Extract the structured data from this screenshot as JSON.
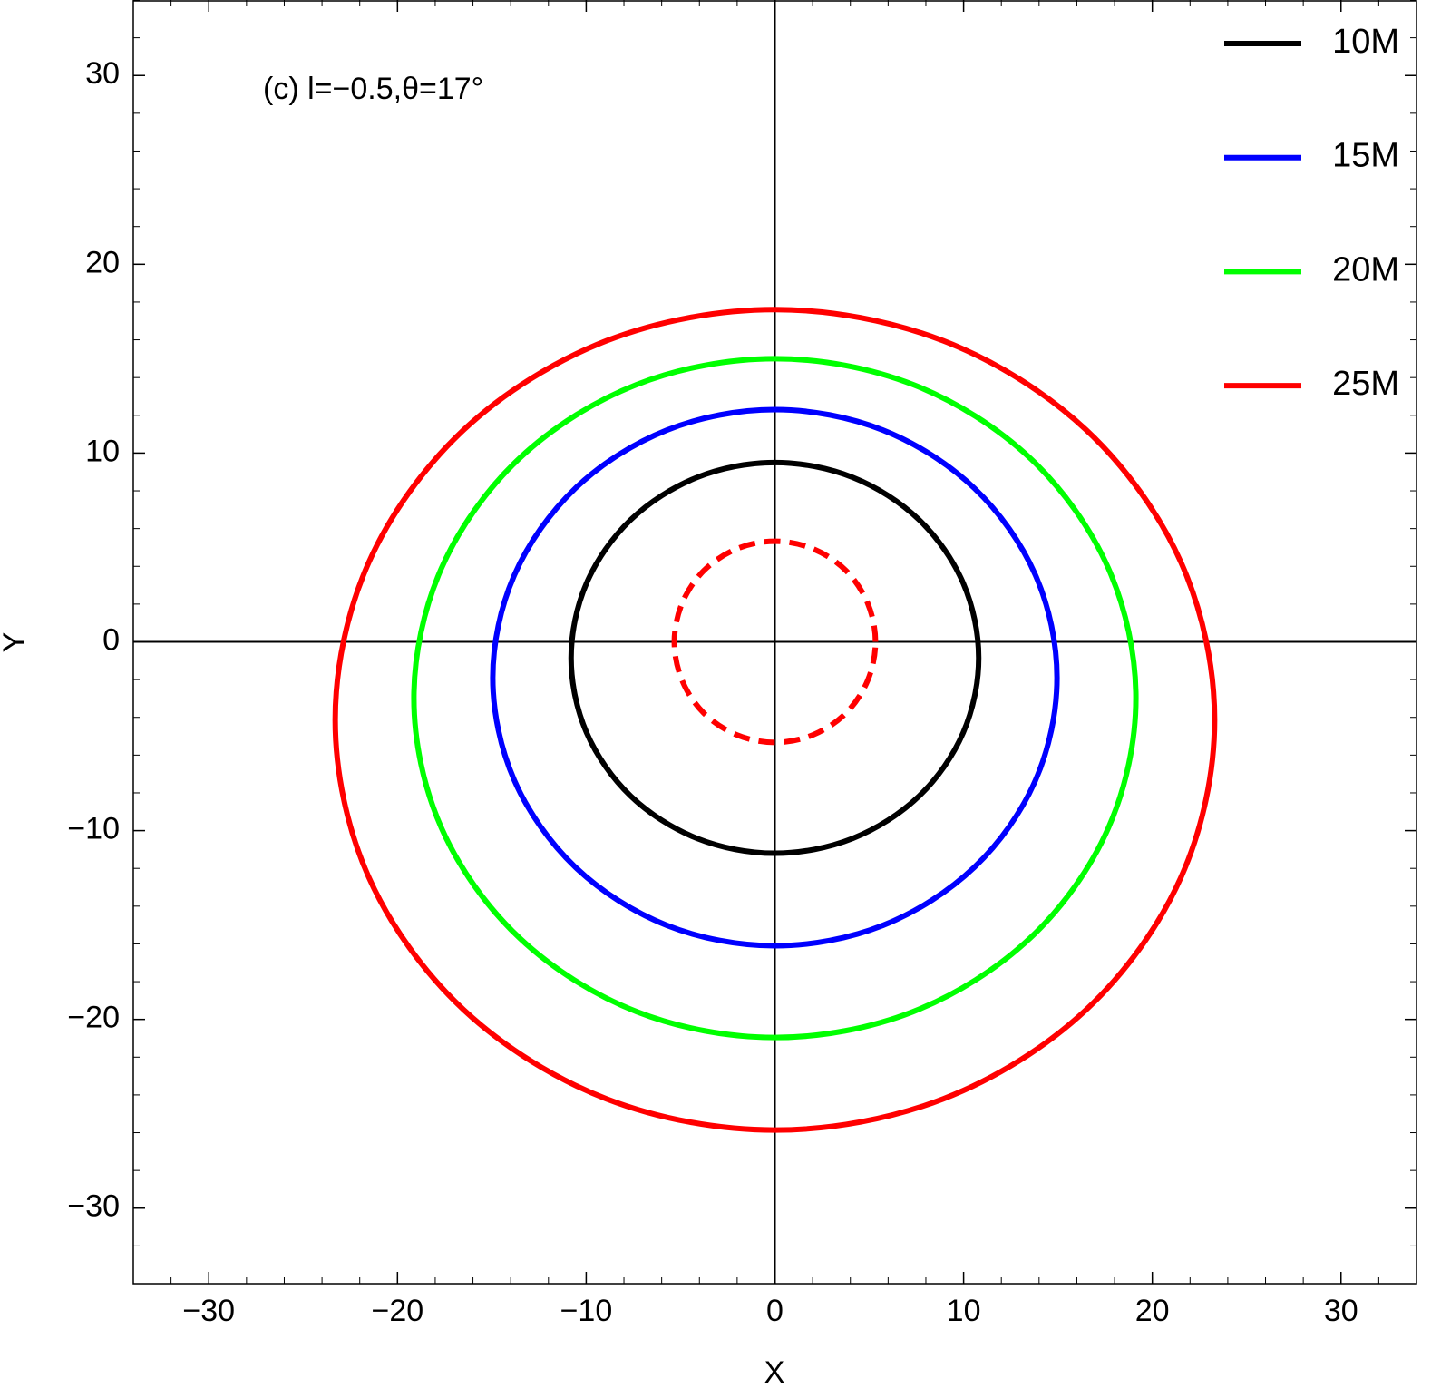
{
  "chart_data": {
    "type": "line",
    "annotation": "(c) l=−0.5,θ=17°",
    "x_label": "X",
    "y_label": "Y",
    "xlim": [
      -34,
      34
    ],
    "ylim": [
      -34,
      34
    ],
    "xticks": [
      {
        "value": -30,
        "label": "−30"
      },
      {
        "value": -20,
        "label": "−20"
      },
      {
        "value": -10,
        "label": "−10"
      },
      0,
      10,
      20,
      30
    ],
    "yticks": [
      {
        "value": -30,
        "label": "−30"
      },
      {
        "value": -20,
        "label": "−20"
      },
      {
        "value": -10,
        "label": "−10"
      },
      0,
      10,
      20,
      30
    ],
    "legend": "top-right",
    "series": [
      {
        "name": "10M",
        "color": "#000000",
        "x": [
          10.8,
          9.98,
          7.64,
          4.13,
          0,
          -4.13,
          -7.64,
          -9.98,
          -10.8,
          -9.98,
          -7.64,
          -4.13,
          0,
          4.13,
          7.64,
          9.98
        ],
        "y": [
          -0.85,
          3.11,
          6.47,
          8.71,
          9.5,
          8.71,
          6.47,
          3.11,
          -0.85,
          -4.81,
          -8.17,
          -10.41,
          -11.2,
          -10.41,
          -8.17,
          -4.81
        ]
      },
      {
        "name": "15M",
        "color": "#0000ff",
        "x": [
          14.95,
          13.81,
          10.57,
          5.72,
          0,
          -5.72,
          -10.57,
          -13.81,
          -14.95,
          -13.81,
          -10.57,
          -5.72,
          0,
          5.72,
          10.57,
          13.81
        ],
        "y": [
          -1.9,
          3.53,
          8.14,
          11.22,
          12.3,
          11.22,
          8.14,
          3.53,
          -1.9,
          -7.33,
          -11.94,
          -15.02,
          -16.1,
          -15.02,
          -11.94,
          -7.33
        ]
      },
      {
        "name": "20M",
        "color": "#00ff00",
        "x": [
          19.13,
          17.67,
          13.53,
          7.32,
          0,
          -7.32,
          -13.53,
          -17.67,
          -19.13,
          -17.67,
          -13.53,
          -7.32,
          0,
          7.32,
          13.53,
          17.67
        ],
        "y": [
          -2.98,
          3.9,
          9.73,
          13.63,
          15.0,
          13.63,
          9.73,
          3.9,
          -2.98,
          -9.86,
          -15.69,
          -19.59,
          -20.96,
          -19.59,
          -15.69,
          -9.86
        ]
      },
      {
        "name": "25M",
        "color": "#ff0000",
        "x": [
          23.3,
          21.53,
          16.48,
          8.92,
          0,
          -8.92,
          -16.48,
          -21.53,
          -23.3,
          -21.53,
          -16.48,
          -8.92,
          0,
          8.92,
          16.48,
          21.53
        ],
        "y": [
          -4.13,
          4.19,
          11.24,
          15.95,
          17.6,
          15.95,
          11.24,
          4.19,
          -4.13,
          -12.45,
          -19.5,
          -24.21,
          -25.86,
          -24.21,
          -19.5,
          -12.45
        ]
      },
      {
        "color": "#ff0000",
        "dashed": true,
        "x": [
          5.33,
          4.92,
          3.77,
          2.04,
          0,
          -2.04,
          -3.77,
          -4.92,
          -5.33,
          -4.92,
          -3.77,
          -2.04,
          0,
          2.04,
          3.77,
          4.92
        ],
        "y": [
          0,
          2.04,
          3.77,
          4.92,
          5.33,
          4.92,
          3.77,
          2.04,
          0,
          -2.04,
          -3.77,
          -4.92,
          -5.33,
          -4.92,
          -3.77,
          -2.04
        ]
      }
    ]
  }
}
